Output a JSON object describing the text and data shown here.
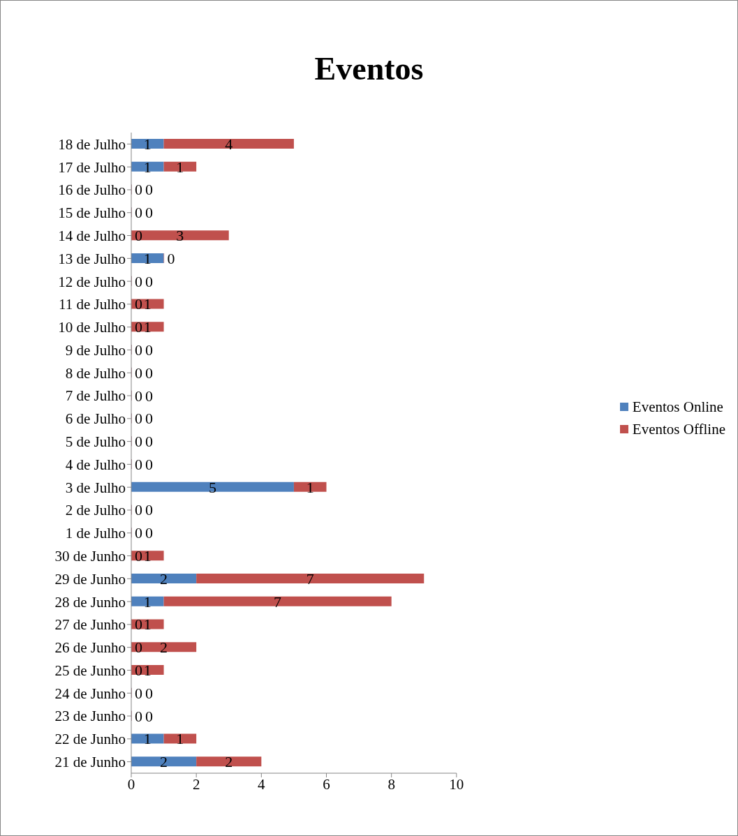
{
  "chart_data": {
    "type": "bar",
    "title": "Eventos",
    "orientation": "horizontal",
    "stacked": true,
    "data_labels": true,
    "legend": "right",
    "categories": [
      "18 de Julho",
      "17 de Julho",
      "16 de Julho",
      "15 de Julho",
      "14 de Julho",
      "13 de Julho",
      "12 de Julho",
      "11 de Julho",
      "10 de Julho",
      "9 de Julho",
      "8 de Julho",
      "7 de Julho",
      "6 de Julho",
      "5 de Julho",
      "4 de Julho",
      "3 de Julho",
      "2 de Julho",
      "1 de Julho",
      "30 de Junho",
      "29 de Junho",
      "28 de Junho",
      "27 de Junho",
      "26 de Junho",
      "25 de Junho",
      "24 de Junho",
      "23 de Junho",
      "22 de Junho",
      "21 de Junho"
    ],
    "series": [
      {
        "name": "Eventos Online",
        "color": "#4f81bd",
        "values": [
          1,
          1,
          0,
          0,
          0,
          1,
          0,
          0,
          0,
          0,
          0,
          0,
          0,
          0,
          0,
          5,
          0,
          0,
          0,
          2,
          1,
          0,
          0,
          0,
          0,
          0,
          1,
          2
        ]
      },
      {
        "name": "Eventos Offline",
        "color": "#c0504d",
        "values": [
          4,
          1,
          0,
          0,
          3,
          0,
          0,
          1,
          1,
          0,
          0,
          0,
          0,
          0,
          0,
          1,
          0,
          0,
          1,
          7,
          7,
          1,
          2,
          1,
          0,
          0,
          1,
          2
        ]
      }
    ],
    "xlim": [
      0,
      10
    ],
    "xticks": [
      0,
      2,
      4,
      6,
      8,
      10
    ]
  }
}
